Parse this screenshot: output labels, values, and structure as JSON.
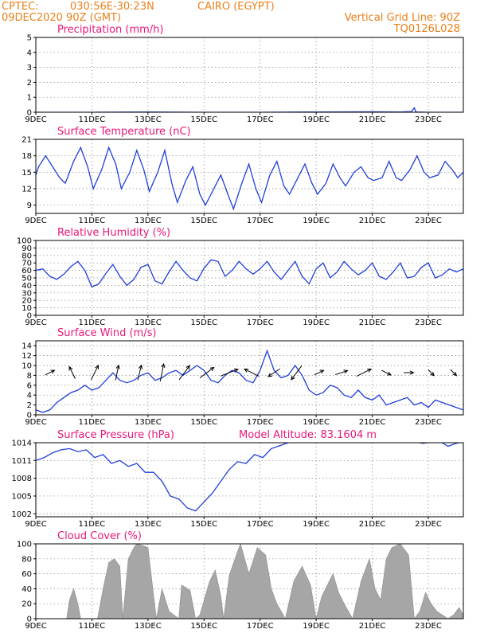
{
  "header": {
    "source": "CPTEC:",
    "coords": "030:56E-30:23N",
    "location": "CAIRO (EGYPT)",
    "run": "09DEC2020 90Z (GMT)",
    "grid_line": "Vertical Grid Line: 90Z",
    "code": "TQ0126L028"
  },
  "colors": {
    "header": "#e8801a",
    "titles": "#e8187a",
    "series": "#1f3fd8",
    "cloud_fill": "#a6a6a6"
  },
  "chart_data": [
    {
      "id": "precip",
      "type": "line",
      "title": "Precipitation (mm/h)",
      "x_ticks": [
        "9DEC",
        "11DEC",
        "13DEC",
        "15DEC",
        "17DEC",
        "19DEC",
        "21DEC",
        "23DEC"
      ],
      "x_range": [
        0,
        15.25
      ],
      "ylim": [
        0,
        5
      ],
      "y_ticks": [
        "0",
        "1",
        "2",
        "3",
        "4",
        "5"
      ],
      "x": [
        0,
        2,
        4,
        6,
        8,
        10,
        12,
        13,
        13.4,
        13.5,
        13.55,
        13.6,
        14,
        15.25
      ],
      "y": [
        0,
        0,
        0.02,
        0,
        0,
        0.02,
        0.03,
        0.02,
        0.05,
        0.3,
        0.05,
        0.02,
        0,
        0
      ]
    },
    {
      "id": "temp",
      "type": "line",
      "title": "Surface Temperature (nC)",
      "x_ticks": [
        "9DEC",
        "11DEC",
        "13DEC",
        "15DEC",
        "17DEC",
        "19DEC",
        "21DEC",
        "23DEC"
      ],
      "x_range": [
        0,
        15.25
      ],
      "ylim": [
        7.5,
        21
      ],
      "y_ticks": [
        "9",
        "12",
        "15",
        "18",
        "21"
      ],
      "x": [
        0,
        0.1,
        0.35,
        0.6,
        0.85,
        1.05,
        1.35,
        1.6,
        1.85,
        2.05,
        2.35,
        2.6,
        2.85,
        3.05,
        3.35,
        3.6,
        3.85,
        4.05,
        4.35,
        4.6,
        4.85,
        5.05,
        5.35,
        5.6,
        5.85,
        6.05,
        6.35,
        6.6,
        6.85,
        7.05,
        7.35,
        7.6,
        7.85,
        8.05,
        8.35,
        8.6,
        8.85,
        9.05,
        9.35,
        9.6,
        9.85,
        10.05,
        10.35,
        10.6,
        10.85,
        11.05,
        11.35,
        11.6,
        11.85,
        12.05,
        12.35,
        12.6,
        12.85,
        13.05,
        13.35,
        13.6,
        13.85,
        14.05,
        14.35,
        14.6,
        14.85,
        15.05,
        15.25
      ],
      "y": [
        14.5,
        16,
        18,
        16,
        14,
        13,
        17,
        19.5,
        16,
        12,
        15.5,
        19.5,
        16.5,
        12,
        15,
        19,
        15.5,
        11.5,
        15,
        19,
        13,
        9.5,
        13.5,
        16,
        11,
        9,
        12,
        14.5,
        11,
        8.3,
        13,
        16.5,
        12,
        9.5,
        14.5,
        17,
        12.5,
        11,
        14,
        16.5,
        13,
        11,
        13,
        16.5,
        14,
        12.5,
        15,
        16,
        14,
        13.5,
        14,
        17,
        14,
        13.5,
        15.5,
        18,
        15,
        14,
        14.5,
        17,
        15.5,
        14,
        15
      ]
    },
    {
      "id": "rh",
      "type": "line",
      "title": "Relative Humidity (%)",
      "x_ticks": [
        "9DEC",
        "11DEC",
        "13DEC",
        "15DEC",
        "17DEC",
        "19DEC",
        "21DEC",
        "23DEC"
      ],
      "x_range": [
        0,
        15.25
      ],
      "ylim": [
        0,
        100
      ],
      "y_ticks": [
        "0",
        "10",
        "20",
        "30",
        "40",
        "50",
        "60",
        "70",
        "80",
        "90",
        "100"
      ],
      "x": [
        0,
        0.25,
        0.5,
        0.75,
        1,
        1.25,
        1.5,
        1.75,
        2,
        2.25,
        2.5,
        2.75,
        3,
        3.25,
        3.5,
        3.75,
        4,
        4.25,
        4.5,
        4.75,
        5,
        5.25,
        5.5,
        5.75,
        6,
        6.25,
        6.5,
        6.75,
        7,
        7.25,
        7.5,
        7.75,
        8,
        8.25,
        8.5,
        8.75,
        9,
        9.25,
        9.5,
        9.75,
        10,
        10.25,
        10.5,
        10.75,
        11,
        11.25,
        11.5,
        11.75,
        12,
        12.25,
        12.5,
        12.75,
        13,
        13.25,
        13.5,
        13.75,
        14,
        14.25,
        14.5,
        14.75,
        15,
        15.25
      ],
      "y": [
        60,
        62,
        52,
        48,
        55,
        65,
        72,
        60,
        38,
        42,
        56,
        68,
        52,
        40,
        48,
        64,
        68,
        46,
        42,
        58,
        72,
        60,
        50,
        46,
        63,
        74,
        72,
        52,
        60,
        72,
        62,
        55,
        62,
        72,
        58,
        48,
        60,
        72,
        52,
        42,
        62,
        70,
        50,
        58,
        72,
        62,
        54,
        60,
        70,
        52,
        48,
        58,
        70,
        50,
        52,
        64,
        70,
        50,
        54,
        62,
        58,
        62
      ]
    },
    {
      "id": "wind",
      "type": "line",
      "title": "Surface Wind (m/s)",
      "x_ticks": [
        "9DEC",
        "11DEC",
        "13DEC",
        "15DEC",
        "17DEC",
        "19DEC",
        "21DEC",
        "23DEC"
      ],
      "x_range": [
        0,
        15.25
      ],
      "ylim": [
        0,
        15
      ],
      "y_ticks": [
        "0",
        "2",
        "4",
        "6",
        "8",
        "10",
        "12",
        "14"
      ],
      "x": [
        0,
        0.25,
        0.5,
        0.75,
        1,
        1.25,
        1.5,
        1.75,
        2,
        2.25,
        2.5,
        2.75,
        3,
        3.25,
        3.5,
        3.75,
        4,
        4.25,
        4.5,
        4.75,
        5,
        5.25,
        5.5,
        5.75,
        6,
        6.25,
        6.5,
        6.75,
        7,
        7.25,
        7.5,
        7.75,
        8,
        8.25,
        8.5,
        8.75,
        9,
        9.25,
        9.5,
        9.75,
        10,
        10.25,
        10.5,
        10.75,
        11,
        11.25,
        11.5,
        11.75,
        12,
        12.25,
        12.5,
        12.75,
        13,
        13.25,
        13.5,
        13.75,
        14,
        14.25,
        14.5,
        14.75,
        15,
        15.25
      ],
      "y": [
        1,
        0.5,
        1,
        2.5,
        3.5,
        4.5,
        5,
        6,
        5,
        5.5,
        7,
        8.5,
        7,
        6.5,
        7,
        8,
        8.5,
        7,
        7.5,
        8.5,
        9,
        8,
        9,
        10,
        9,
        7,
        6.5,
        8,
        9,
        8.5,
        7,
        6.5,
        9,
        13,
        9,
        7.5,
        8,
        10,
        8,
        5,
        4,
        4.5,
        6,
        5.5,
        4,
        3.5,
        5,
        3.5,
        3,
        4,
        2,
        2.5,
        3,
        3.5,
        2,
        2.5,
        1.5,
        3,
        2.5,
        2,
        1.5,
        1
      ]
    },
    {
      "id": "pres",
      "type": "line",
      "title": "Surface Pressure (hPa)",
      "annotation": "Model Altitude: 83.1604 m",
      "x_ticks": [
        "9DEC",
        "11DEC",
        "13DEC",
        "15DEC",
        "17DEC",
        "19DEC",
        "21DEC",
        "23DEC"
      ],
      "x_range": [
        0,
        15.25
      ],
      "ylim": [
        1001.5,
        1014
      ],
      "y_ticks": [
        "1002",
        "1005",
        "1008",
        "1011",
        "1014"
      ],
      "x": [
        0,
        0.3,
        0.6,
        0.9,
        1.2,
        1.5,
        1.8,
        2.1,
        2.4,
        2.7,
        3,
        3.3,
        3.6,
        3.9,
        4.2,
        4.5,
        4.8,
        5.1,
        5.4,
        5.7,
        6,
        6.3,
        6.6,
        6.9,
        7.2,
        7.5,
        7.8,
        8.1,
        8.4,
        8.7,
        9,
        9.3,
        9.6,
        9.9,
        10.2,
        10.5,
        10.8,
        11.1,
        11.4,
        11.7,
        12,
        12.3,
        12.6,
        12.9,
        13.2,
        13.5,
        13.8,
        14.1,
        14.4,
        14.7,
        15,
        15.25
      ],
      "y": [
        1011,
        1011.5,
        1012.3,
        1012.8,
        1013,
        1012.5,
        1012.8,
        1011.5,
        1012,
        1010.5,
        1011,
        1010,
        1010.5,
        1009,
        1009,
        1007.5,
        1005,
        1004.5,
        1003,
        1002.5,
        1004,
        1005.5,
        1007.5,
        1009.5,
        1010.8,
        1010.5,
        1012,
        1011.5,
        1013,
        1013.5,
        1014,
        1014.2,
        1014.5,
        1014.6,
        1014.5,
        1014.4,
        1014.5,
        1014.6,
        1014.5,
        1014.6,
        1014.5,
        1014.6,
        1014.5,
        1014.6,
        1014.3,
        1014.2,
        1013.9,
        1014.1,
        1014.3,
        1013.4,
        1013.9,
        1014.2
      ]
    },
    {
      "id": "cloud",
      "type": "area",
      "title": "Cloud Cover (%)",
      "x_ticks": [
        "9DEC",
        "11DEC",
        "13DEC",
        "15DEC",
        "17DEC",
        "19DEC",
        "21DEC",
        "23DEC"
      ],
      "x_range": [
        0,
        15.25
      ],
      "ylim": [
        0,
        100
      ],
      "y_ticks": [
        "0",
        "20",
        "40",
        "60",
        "80",
        "100"
      ],
      "x": [
        0,
        1.1,
        1.2,
        1.35,
        1.5,
        1.6,
        2.2,
        2.4,
        2.6,
        2.8,
        3.0,
        3.1,
        3.3,
        3.5,
        3.6,
        3.8,
        4.0,
        4.3,
        4.5,
        4.75,
        5.1,
        5.2,
        5.5,
        5.7,
        5.85,
        6.2,
        6.4,
        6.6,
        6.7,
        6.9,
        7.2,
        7.3,
        7.6,
        7.9,
        8.2,
        8.4,
        8.6,
        8.9,
        9.2,
        9.5,
        9.8,
        10.0,
        10.2,
        10.4,
        10.6,
        10.8,
        11.0,
        11.3,
        11.6,
        11.9,
        12.1,
        12.3,
        12.5,
        12.7,
        13.0,
        13.3,
        13.5,
        13.7,
        13.9,
        14.1,
        14.3,
        14.5,
        14.7,
        14.9,
        15.1,
        15.25
      ],
      "y": [
        0,
        0,
        25,
        40,
        20,
        0,
        0,
        40,
        75,
        80,
        70,
        0,
        80,
        95,
        100,
        98,
        95,
        0,
        40,
        10,
        0,
        45,
        38,
        0,
        5,
        50,
        65,
        30,
        0,
        58,
        90,
        100,
        60,
        95,
        85,
        40,
        20,
        0,
        50,
        70,
        45,
        0,
        30,
        45,
        60,
        35,
        20,
        0,
        50,
        80,
        40,
        25,
        80,
        95,
        100,
        85,
        0,
        10,
        35,
        20,
        10,
        5,
        0,
        5,
        15,
        5
      ]
    }
  ],
  "wind_arrows": {
    "note": "direction vectors (u, v) of the wind arrows, in m/s",
    "x": [
      0.5,
      1.3,
      2.1,
      2.9,
      3.7,
      4.5,
      5.3,
      6.1,
      6.9,
      7.7,
      8.5,
      9.3,
      10.1,
      10.9,
      11.7,
      12.5,
      13.3,
      14.1,
      14.9
    ],
    "u": [
      2,
      -1.5,
      2,
      0.8,
      1,
      1,
      3,
      4,
      5,
      -4,
      -3,
      -3,
      2,
      3,
      4,
      2,
      2,
      1,
      1
    ],
    "v": [
      1,
      3,
      4,
      4,
      4,
      5,
      4,
      3,
      2,
      2,
      -2,
      -4,
      1,
      1,
      2,
      -1,
      0,
      -1,
      -1
    ]
  }
}
